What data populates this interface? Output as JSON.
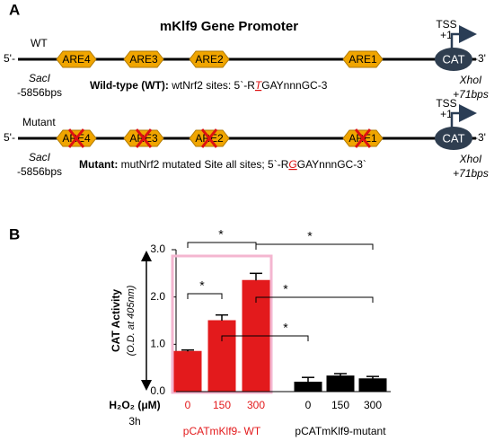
{
  "panel_a": {
    "label": "A",
    "title": "mKlf9 Gene Promoter",
    "rows": [
      {
        "name": "WT",
        "five_prime": "5'-",
        "elements": [
          "ARE4",
          "ARE3",
          "ARE2",
          "ARE1"
        ],
        "tss": "TSS",
        "tss_pos": "+1",
        "reporter": "CAT",
        "three_prime": "-3'",
        "left_site": "SacI",
        "left_pos": "-5856bps",
        "right_site": "XhoI",
        "right_pos": "+71bps",
        "desc_label": "Wild-type (WT):",
        "desc_text": " wtNrf2 sites: 5`-R",
        "desc_base": "T",
        "desc_tail": "GAYnnnGC-3"
      },
      {
        "name": "Mutant",
        "five_prime": "5'-",
        "elements": [
          "ARE4",
          "ARE3",
          "ARE2",
          "ARE1"
        ],
        "tss": "TSS",
        "tss_pos": "+1",
        "reporter": "CAT",
        "three_prime": "-3'",
        "left_site": "SacI",
        "left_pos": "-5856bps",
        "right_site": "XhoI",
        "right_pos": "+71bps",
        "desc_label": "Mutant:",
        "desc_text": " mutNrf2 mutated Site all sites; 5`-R",
        "desc_base": "G",
        "desc_tail": "GAYnnnGC-3`"
      }
    ]
  },
  "chart_data": {
    "type": "bar",
    "panel_label": "B",
    "y_label": "CAT Activity",
    "y_sublabel": "(O.D. at 405nm)",
    "x_label": "H₂O₂ (μM)",
    "x_note": "3h",
    "categories": [
      "0",
      "150",
      "300"
    ],
    "series": [
      {
        "name": "pCATmKlf9- WT",
        "color": "#e31a1c",
        "values": [
          0.85,
          1.5,
          2.35
        ],
        "errors": [
          0.03,
          0.12,
          0.15
        ]
      },
      {
        "name": "pCATmKlf9-mutant",
        "color": "#000000",
        "values": [
          0.2,
          0.33,
          0.27
        ],
        "errors": [
          0.1,
          0.05,
          0.05
        ]
      }
    ],
    "ylim": [
      0,
      3
    ],
    "yticks": [
      {
        "value": 0,
        "label": "0.0"
      },
      {
        "value": 1,
        "label": "1.0"
      },
      {
        "value": 2,
        "label": "2.0"
      },
      {
        "value": 3,
        "label": "3.0"
      }
    ],
    "annotations": [
      "*",
      "*",
      "*",
      "*",
      "*"
    ]
  }
}
